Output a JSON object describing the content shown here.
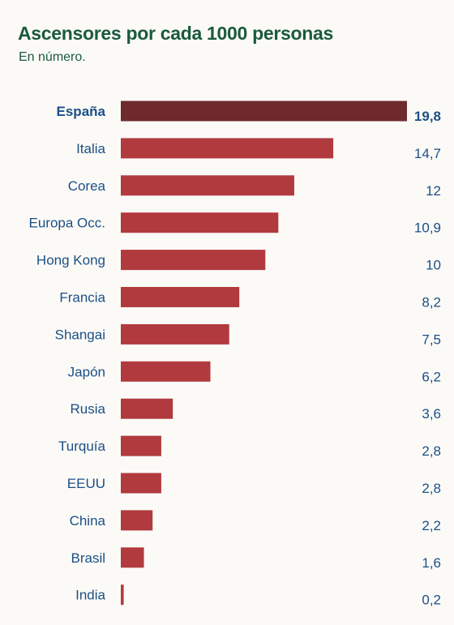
{
  "chart_data": {
    "type": "bar",
    "orientation": "horizontal",
    "title": "Ascensores por cada 1000 personas",
    "subtitle": "En número.",
    "xlabel": "",
    "ylabel": "",
    "categories": [
      "España",
      "Italia",
      "Corea",
      "Europa Occ.",
      "Hong Kong",
      "Francia",
      "Shangai",
      "Japón",
      "Rusia",
      "Turquía",
      "EEUU",
      "China",
      "Brasil",
      "India"
    ],
    "values": [
      19.8,
      14.7,
      12,
      10.9,
      10,
      8.2,
      7.5,
      6.2,
      3.6,
      2.8,
      2.8,
      2.2,
      1.6,
      0.2
    ],
    "value_labels": [
      "19,8",
      "14,7",
      "12",
      "10,9",
      "10",
      "8,2",
      "7,5",
      "6,2",
      "3,6",
      "2,8",
      "2,8",
      "2,2",
      "1,6",
      "0,2"
    ],
    "highlight": "España",
    "xlim": [
      0,
      19.8
    ],
    "grid": false,
    "colors": {
      "bar": "#b13a3e",
      "highlight_bar": "#6e2a2c",
      "title": "#1b5a3c",
      "label": "#1c4f86"
    }
  }
}
